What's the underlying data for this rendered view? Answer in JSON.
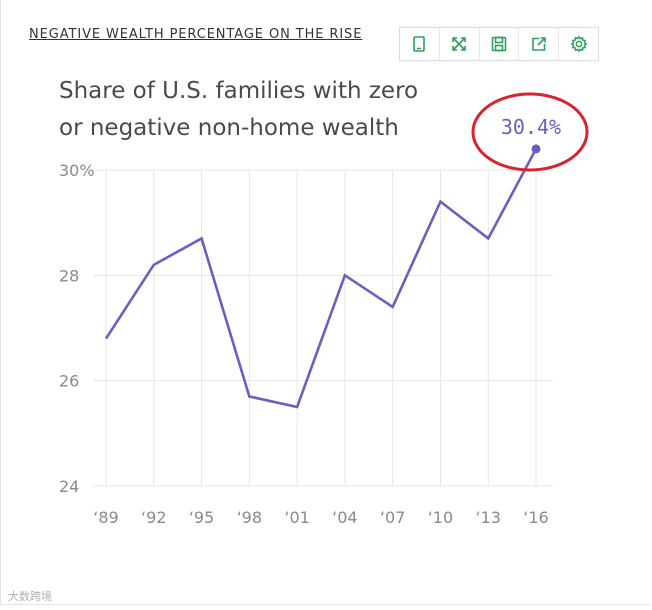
{
  "header": {
    "title": "NEGATIVE WEALTH PERCENTAGE ON THE RISE"
  },
  "toolbar": {
    "buttons": [
      {
        "icon": "tablet-icon"
      },
      {
        "icon": "expand-icon"
      },
      {
        "icon": "save-icon"
      },
      {
        "icon": "share-icon"
      },
      {
        "icon": "gear-icon"
      }
    ],
    "icon_color": "#2e9e5b"
  },
  "watermark": "大数跨境",
  "chart_data": {
    "type": "line",
    "title_lines": [
      "Share of U.S. families with zero",
      "or negative non-home wealth"
    ],
    "categories": [
      "‘89",
      "‘92",
      "‘95",
      "‘98",
      "‘01",
      "‘04",
      "‘07",
      "‘10",
      "‘13",
      "‘16"
    ],
    "x": [
      1989,
      1992,
      1995,
      1998,
      2001,
      2004,
      2007,
      2010,
      2013,
      2016
    ],
    "values": [
      26.8,
      28.2,
      28.7,
      25.7,
      25.5,
      28.0,
      27.4,
      29.4,
      28.7,
      30.4
    ],
    "ylim": [
      24,
      30
    ],
    "yticks": [
      24,
      26,
      28,
      30
    ],
    "ytick_labels": [
      "24",
      "26",
      "28",
      "30%"
    ],
    "grid": true,
    "line_color": "#6a5fc1",
    "annotation": {
      "text": "30.4%",
      "index": 9,
      "circle_color": "#d9232e"
    }
  }
}
